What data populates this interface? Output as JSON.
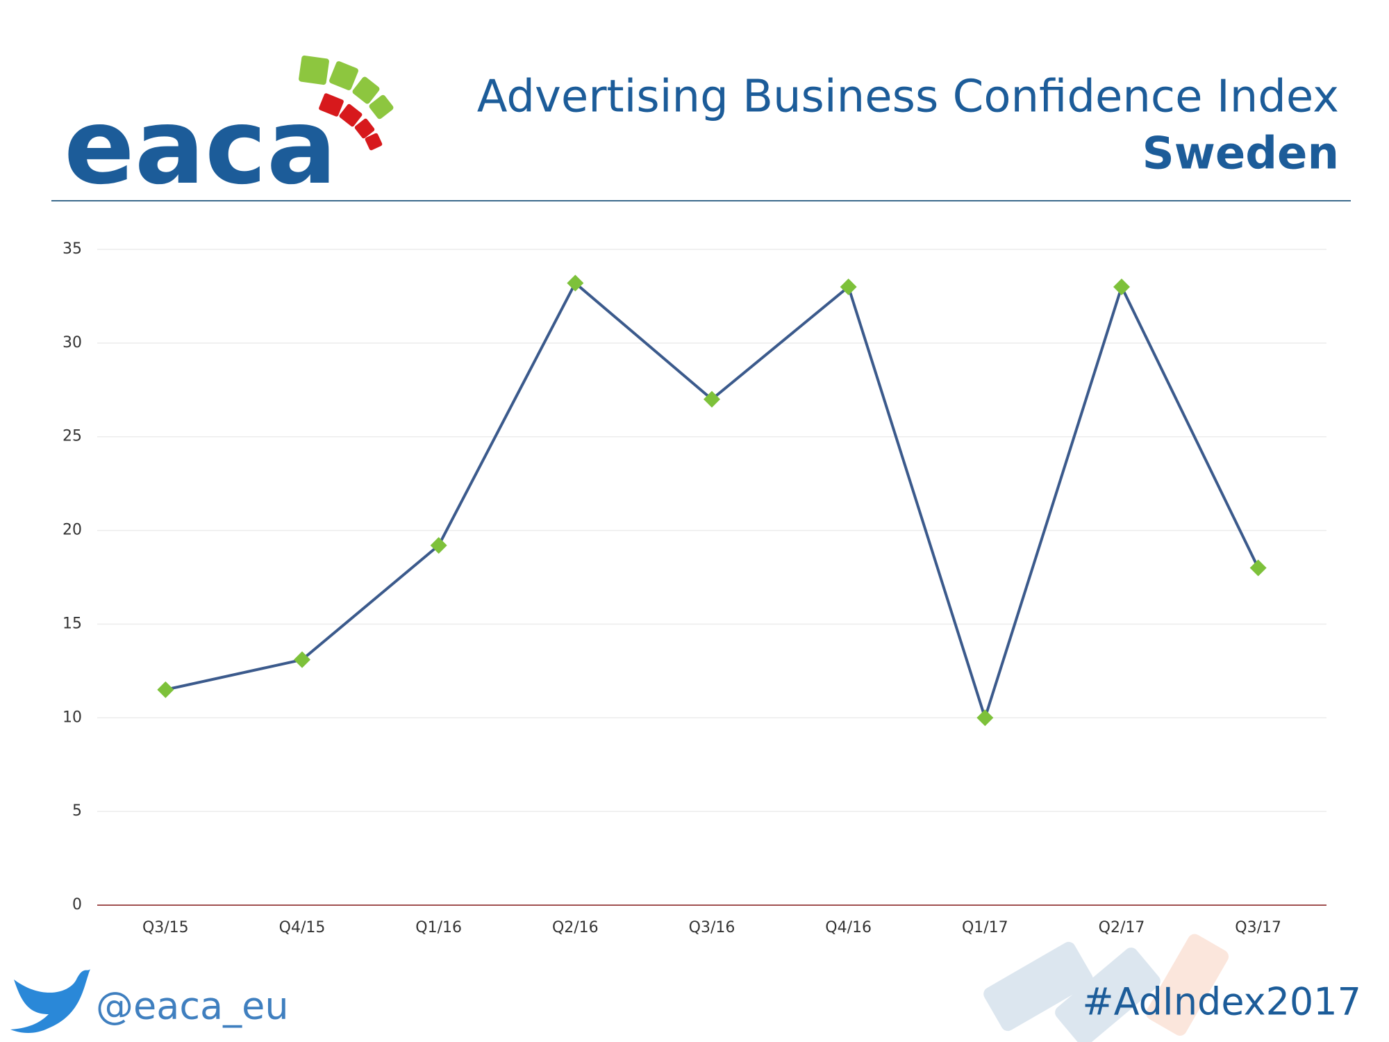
{
  "logo": "eaca",
  "twitter_handle": "@eaca_eu",
  "hashtag": "#AdIndex2017",
  "chart_data": {
    "type": "line",
    "title": "Advertising Business Confidence Index",
    "subtitle": "Sweden",
    "categories": [
      "Q3/15",
      "Q4/15",
      "Q1/16",
      "Q2/16",
      "Q3/16",
      "Q4/16",
      "Q1/17",
      "Q2/17",
      "Q3/17"
    ],
    "series": [
      {
        "name": "Sweden",
        "color": "#3b5a8c",
        "marker_color": "#7dc13a",
        "values": [
          11.5,
          13.1,
          19.2,
          33.2,
          27,
          33,
          10,
          33,
          18
        ]
      }
    ],
    "ylim": [
      0,
      35
    ],
    "yticks": [
      0,
      5,
      10,
      15,
      20,
      25,
      30,
      35
    ],
    "grid": true
  }
}
